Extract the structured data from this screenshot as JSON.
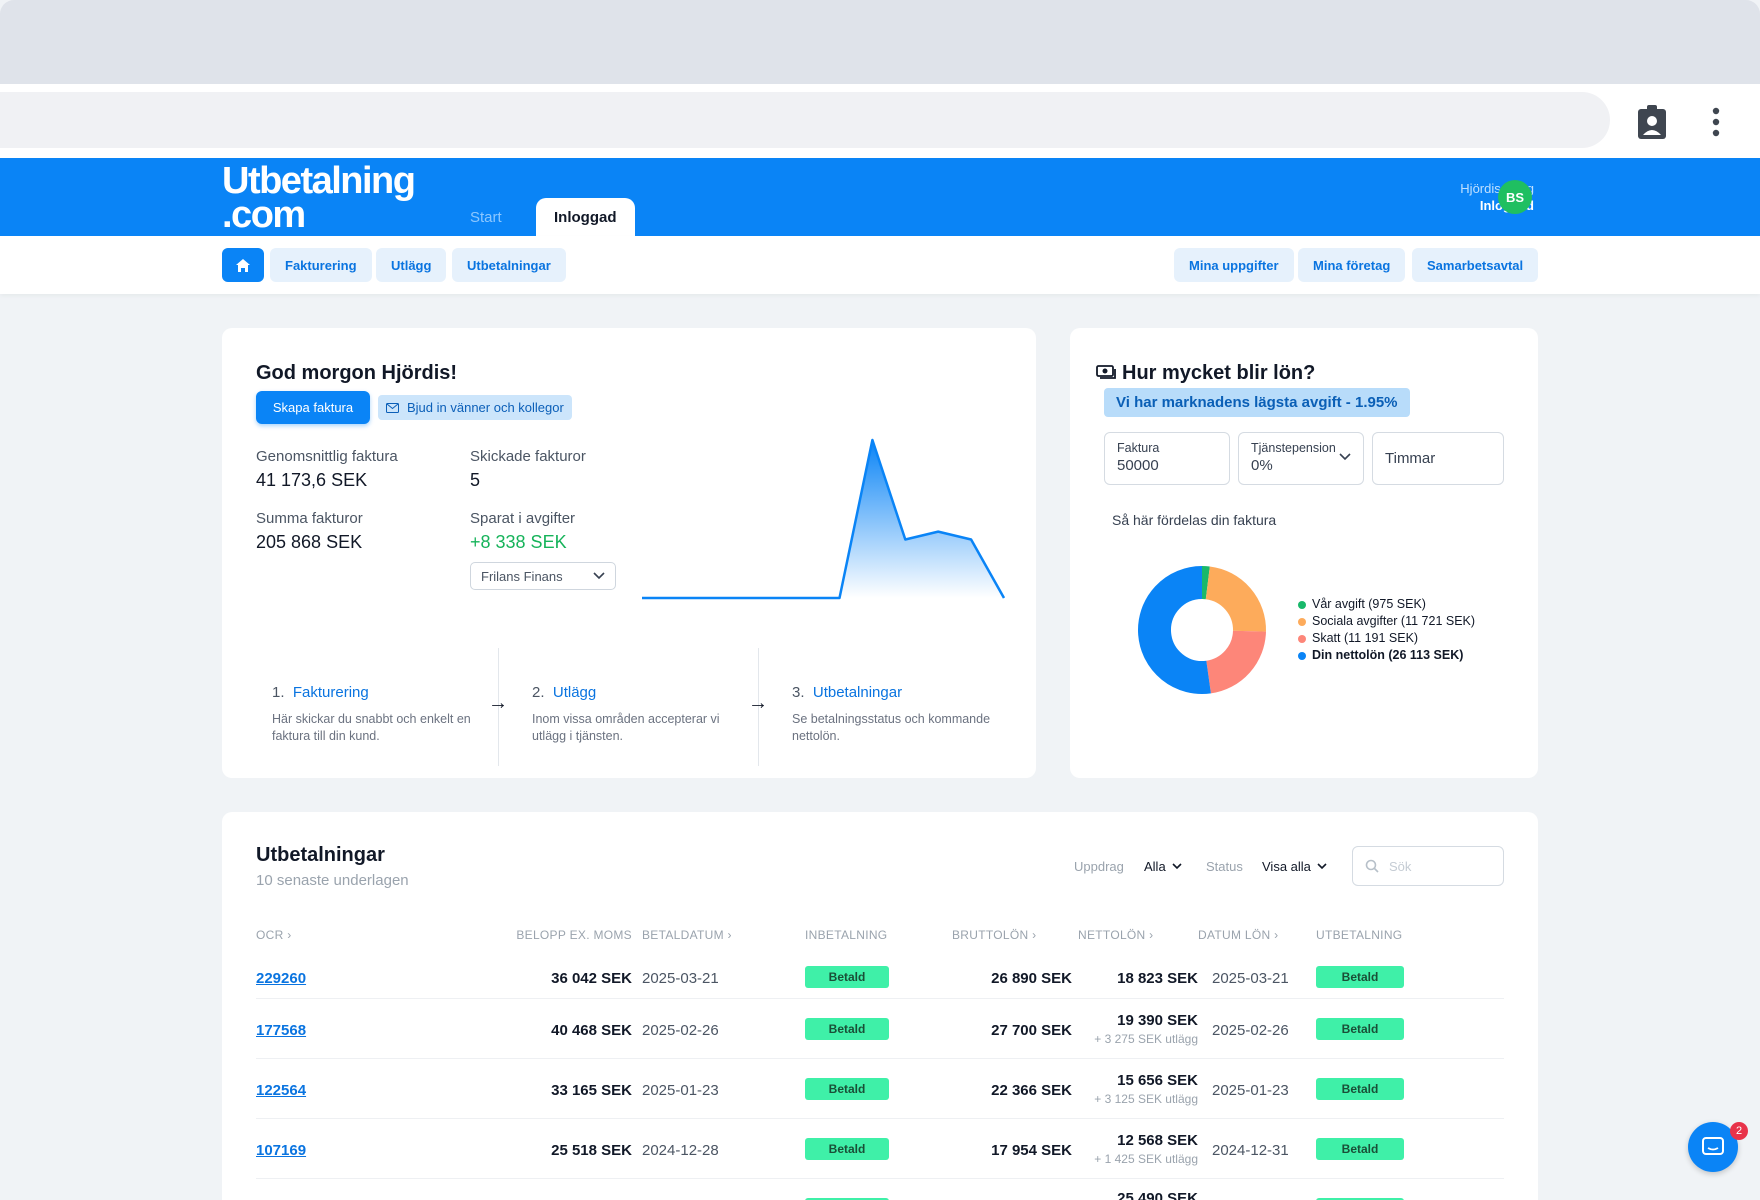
{
  "header": {
    "logo_line1": "Utbetalning",
    "logo_line2": ".com",
    "tabs": [
      {
        "label": "Start"
      },
      {
        "label": "Inloggad"
      }
    ],
    "user": {
      "name": "Hjördis Skog",
      "status": "Inloggad",
      "initials": "BS"
    }
  },
  "subnav": {
    "left": [
      "Fakturering",
      "Utlägg",
      "Utbetalningar"
    ],
    "right": [
      "Mina uppgifter",
      "Mina företag",
      "Samarbetsavtal"
    ]
  },
  "welcome": {
    "title": "God morgon Hjördis!",
    "create_invoice": "Skapa faktura",
    "invite": "Bjud in vänner och kollegor",
    "stats": {
      "avg_label": "Genomsnittlig faktura",
      "avg_value": "41 173,6 SEK",
      "sent_label": "Skickade fakturor",
      "sent_value": "5",
      "sum_label": "Summa fakturor",
      "sum_value": "205 868 SEK",
      "saved_label": "Sparat i avgifter",
      "saved_value": "+8 338 SEK"
    },
    "provider_select": "Frilans Finans",
    "steps": [
      {
        "num": "1.",
        "title": "Fakturering",
        "desc": "Här skickar du snabbt och enkelt en faktura till din kund."
      },
      {
        "num": "2.",
        "title": "Utlägg",
        "desc": "Inom vissa områden accepterar vi utlägg i tjänsten."
      },
      {
        "num": "3.",
        "title": "Utbetalningar",
        "desc": "Se betalningsstatus och kommande nettolön."
      }
    ]
  },
  "chart_data": {
    "type": "area",
    "title": "",
    "color": "#0a84f6",
    "values": [
      0,
      0,
      0,
      0,
      0,
      0,
      0,
      100,
      37,
      42,
      37,
      0
    ]
  },
  "salary": {
    "title": "Hur mycket blir lön?",
    "banner": "Vi har marknadens lägsta avgift - 1.95%",
    "fields": {
      "faktura_label": "Faktura",
      "faktura_value": "50000",
      "pension_label": "Tjänstepension",
      "pension_value": "0%",
      "hours_placeholder": "Timmar"
    },
    "distribution_title": "Så här fördelas din faktura",
    "donut": {
      "type": "pie",
      "slices": [
        {
          "label": "Vår avgift (975 SEK)",
          "value": 975,
          "color": "#19b86a"
        },
        {
          "label": "Sociala avgifter (11 721 SEK)",
          "value": 11721,
          "color": "#fdab5b"
        },
        {
          "label": "Skatt (11 191 SEK)",
          "value": 11191,
          "color": "#fd8679"
        },
        {
          "label": "Din nettolön (26 113 SEK)",
          "value": 26113,
          "color": "#0a84f6"
        }
      ]
    }
  },
  "payouts": {
    "title": "Utbetalningar",
    "subtitle": "10 senaste underlagen",
    "filters": {
      "uppdrag_label": "Uppdrag",
      "uppdrag_value": "Alla",
      "status_label": "Status",
      "status_value": "Visa alla",
      "search_placeholder": "Sök"
    },
    "columns": [
      "OCR",
      "BELOPP EX. MOMS",
      "BETALDATUM",
      "INBETALNING",
      "BRUTTOLÖN",
      "NETTOLÖN",
      "DATUM LÖN",
      "UTBETALNING"
    ],
    "rows": [
      {
        "ocr": "229260",
        "amount": "36 042 SEK",
        "paydate": "2025-03-21",
        "in_status": "Betald",
        "gross": "26 890 SEK",
        "net": "18 823 SEK",
        "net_sub": "",
        "salary_date": "2025-03-21",
        "out_status": "Betald"
      },
      {
        "ocr": "177568",
        "amount": "40 468 SEK",
        "paydate": "2025-02-26",
        "in_status": "Betald",
        "gross": "27 700 SEK",
        "net": "19 390 SEK",
        "net_sub": "+ 3 275 SEK utlägg",
        "salary_date": "2025-02-26",
        "out_status": "Betald"
      },
      {
        "ocr": "122564",
        "amount": "33 165 SEK",
        "paydate": "2025-01-23",
        "in_status": "Betald",
        "gross": "22 366 SEK",
        "net": "15 656 SEK",
        "net_sub": "+ 3 125 SEK utlägg",
        "salary_date": "2025-01-23",
        "out_status": "Betald"
      },
      {
        "ocr": "107169",
        "amount": "25 518 SEK",
        "paydate": "2024-12-28",
        "in_status": "Betald",
        "gross": "17 954 SEK",
        "net": "12 568 SEK",
        "net_sub": "+ 1 425 SEK utlägg",
        "salary_date": "2024-12-31",
        "out_status": "Betald"
      },
      {
        "ocr": "",
        "amount": "",
        "paydate": "",
        "in_status": "",
        "gross": "",
        "net": "25 490 SEK",
        "net_sub": "",
        "salary_date": "",
        "out_status": ""
      }
    ]
  },
  "chat": {
    "badge": "2"
  }
}
